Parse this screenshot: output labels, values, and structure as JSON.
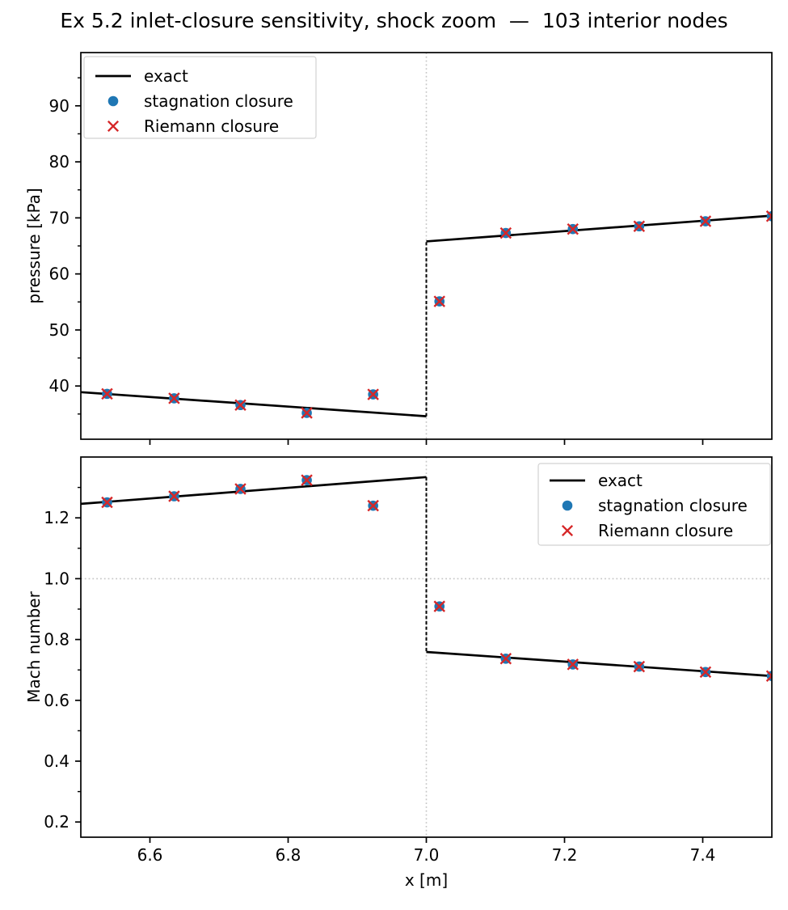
{
  "figure": {
    "title": "Ex 5.2 inlet-closure sensitivity, shock zoom  —  103 interior nodes",
    "background": "#ffffff"
  },
  "palette": {
    "exact": "#000000",
    "stagnation": "#1f77b4",
    "riemann": "#d62728",
    "guide": "#c6c6c6",
    "axis": "#000000",
    "legend_border": "#d2d2d2",
    "legend_background": "#ffffff"
  },
  "chart_data": [
    {
      "name": "pressure",
      "type": "line+scatter",
      "title": "",
      "xlabel": "",
      "ylabel": "pressure [kPa]",
      "xlim": [
        6.5,
        7.5
      ],
      "ylim": [
        30.5,
        99.5
      ],
      "grid": false,
      "xticks": [
        6.6,
        6.8,
        7.0,
        7.2,
        7.4
      ],
      "xtick_labels": [
        "6.6",
        "6.8",
        "7.0",
        "7.2",
        "7.4"
      ],
      "show_xticklabels": false,
      "yticks": [
        40,
        50,
        60,
        70,
        80,
        90
      ],
      "ytick_labels": [
        "40",
        "50",
        "60",
        "70",
        "80",
        "90"
      ],
      "yticks_minor": [
        35,
        45,
        55,
        65,
        75,
        85,
        95
      ],
      "legend": {
        "position": "upper-left",
        "entries": [
          {
            "label": "exact",
            "marker": "line",
            "color": "#000000"
          },
          {
            "label": "stagnation closure",
            "marker": "circle",
            "color": "#1f77b4"
          },
          {
            "label": "Riemann closure",
            "marker": "x",
            "color": "#d62728"
          }
        ]
      },
      "guides": [
        {
          "kind": "vline",
          "x": 7.0,
          "style": "dotted",
          "color": "#c6c6c6",
          "name": "shock-location-guide"
        }
      ],
      "exact_line": {
        "pre_shock": {
          "x": [
            6.5,
            7.0
          ],
          "y": [
            38.9,
            34.6
          ]
        },
        "post_shock": {
          "x": [
            7.0,
            7.5
          ],
          "y": [
            65.8,
            70.4
          ]
        },
        "shock_jump": {
          "x": 7.0,
          "y_from": 34.6,
          "y_to": 65.8,
          "style": "dashed"
        }
      },
      "scatter_x": [
        6.538,
        6.635,
        6.731,
        6.827,
        6.923,
        7.019,
        7.115,
        7.212,
        7.308,
        7.404,
        7.5
      ],
      "series": [
        {
          "name": "stagnation closure",
          "marker": "circle",
          "color": "#1f77b4",
          "values": [
            38.6,
            37.8,
            36.6,
            35.2,
            38.5,
            55.1,
            67.3,
            68.0,
            68.5,
            69.4,
            70.3
          ]
        },
        {
          "name": "Riemann closure",
          "marker": "x",
          "color": "#d62728",
          "values": [
            38.6,
            37.8,
            36.6,
            35.2,
            38.5,
            55.1,
            67.3,
            68.0,
            68.5,
            69.4,
            70.3
          ]
        }
      ]
    },
    {
      "name": "mach",
      "type": "line+scatter",
      "title": "",
      "xlabel": "x [m]",
      "ylabel": "Mach number",
      "xlim": [
        6.5,
        7.5
      ],
      "ylim": [
        0.15,
        1.4
      ],
      "grid": false,
      "xticks": [
        6.6,
        6.8,
        7.0,
        7.2,
        7.4
      ],
      "xtick_labels": [
        "6.6",
        "6.8",
        "7.0",
        "7.2",
        "7.4"
      ],
      "show_xticklabels": true,
      "yticks": [
        0.2,
        0.4,
        0.6,
        0.8,
        1.0,
        1.2
      ],
      "ytick_labels": [
        "0.2",
        "0.4",
        "0.6",
        "0.8",
        "1.0",
        "1.2"
      ],
      "yticks_minor": [
        0.3,
        0.5,
        0.7,
        0.9,
        1.1,
        1.3
      ],
      "legend": {
        "position": "upper-right",
        "entries": [
          {
            "label": "exact",
            "marker": "line",
            "color": "#000000"
          },
          {
            "label": "stagnation closure",
            "marker": "circle",
            "color": "#1f77b4"
          },
          {
            "label": "Riemann closure",
            "marker": "x",
            "color": "#d62728"
          }
        ]
      },
      "guides": [
        {
          "kind": "vline",
          "x": 7.0,
          "style": "dotted",
          "color": "#c6c6c6",
          "name": "shock-location-guide"
        },
        {
          "kind": "hline",
          "y": 1.0,
          "style": "dotted",
          "color": "#c6c6c6",
          "name": "sonic-line-guide"
        }
      ],
      "exact_line": {
        "pre_shock": {
          "x": [
            6.5,
            7.0
          ],
          "y": [
            1.246,
            1.334
          ]
        },
        "post_shock": {
          "x": [
            7.0,
            7.5
          ],
          "y": [
            0.759,
            0.68
          ]
        },
        "shock_jump": {
          "x": 7.0,
          "y_from": 1.334,
          "y_to": 0.759,
          "style": "dashed"
        }
      },
      "scatter_x": [
        6.538,
        6.635,
        6.731,
        6.827,
        6.923,
        7.019,
        7.115,
        7.212,
        7.308,
        7.404,
        7.5
      ],
      "series": [
        {
          "name": "stagnation closure",
          "marker": "circle",
          "color": "#1f77b4",
          "values": [
            1.251,
            1.271,
            1.295,
            1.324,
            1.24,
            0.909,
            0.737,
            0.718,
            0.711,
            0.693,
            0.68
          ]
        },
        {
          "name": "Riemann closure",
          "marker": "x",
          "color": "#d62728",
          "values": [
            1.251,
            1.271,
            1.295,
            1.324,
            1.24,
            0.909,
            0.737,
            0.718,
            0.711,
            0.693,
            0.68
          ]
        }
      ]
    }
  ]
}
